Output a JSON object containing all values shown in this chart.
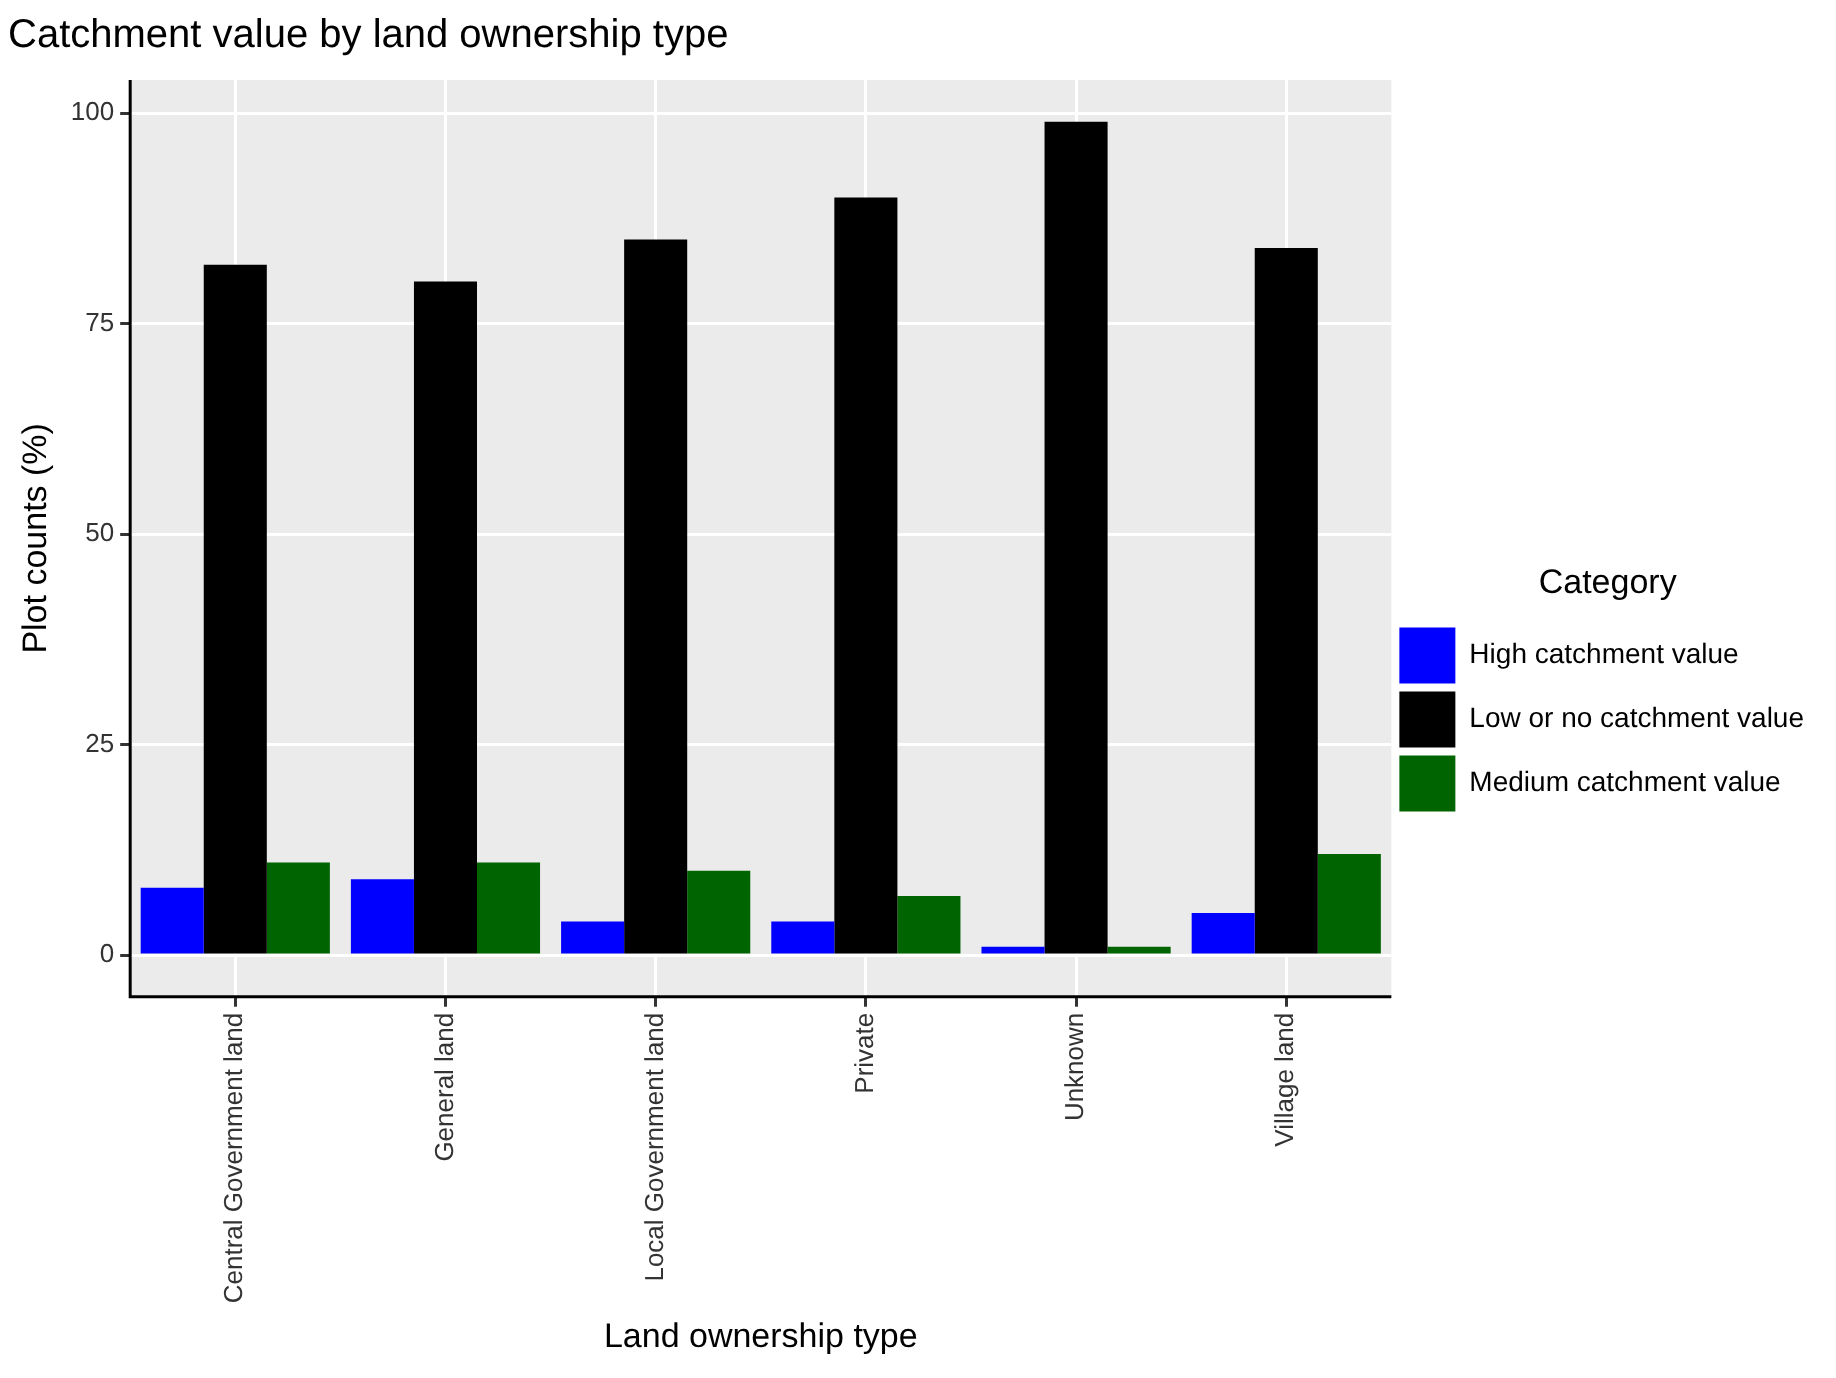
{
  "chart_data": {
    "type": "bar",
    "title": "Catchment value by land ownership type",
    "xlabel": "Land ownership type",
    "ylabel": "Plot counts (%)",
    "legend_title": "Category",
    "legend": "right",
    "categories": [
      "Central Government land",
      "General land",
      "Local Government land",
      "Private",
      "Unknown",
      "Village land"
    ],
    "series": [
      {
        "name": "High catchment value",
        "color": "#0000ff",
        "values": [
          8,
          9,
          4,
          4,
          1,
          5
        ]
      },
      {
        "name": "Low or no catchment value",
        "color": "#000000",
        "values": [
          82,
          80,
          85,
          90,
          99,
          84
        ]
      },
      {
        "name": "Medium catchment value",
        "color": "#006400",
        "values": [
          11,
          11,
          10,
          7,
          1,
          12
        ]
      }
    ],
    "ylim": [
      -4.95,
      103.95
    ],
    "yticks": [
      0,
      25,
      50,
      75,
      100
    ],
    "grid": true
  }
}
